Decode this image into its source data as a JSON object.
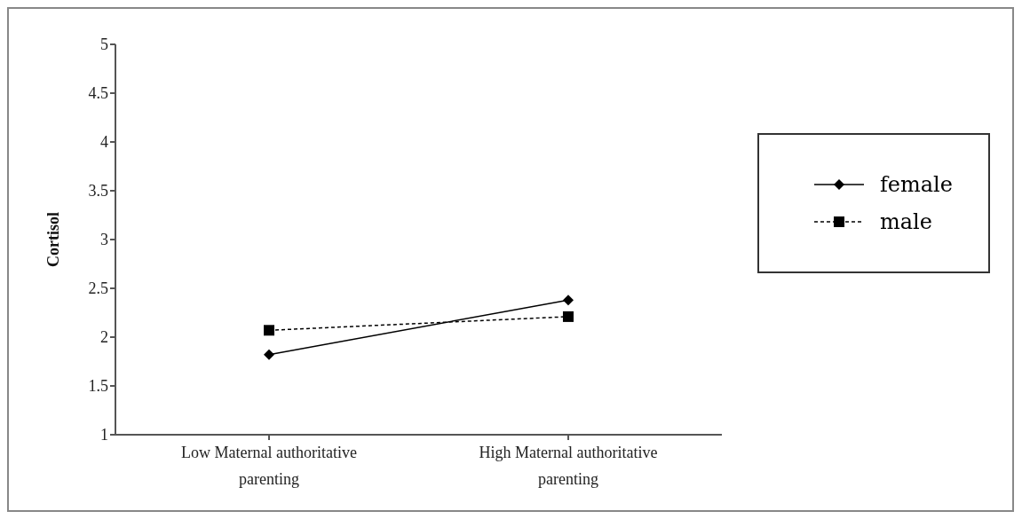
{
  "chart_data": {
    "type": "line",
    "categories": [
      "Low Maternal authoritative parenting",
      "High Maternal authoritative parenting"
    ],
    "series": [
      {
        "name": "female",
        "color": "#000000",
        "values": [
          1.82,
          2.38
        ],
        "marker": "diamond",
        "line_style": "solid"
      },
      {
        "name": "male",
        "color": "#000000",
        "values": [
          2.07,
          2.21
        ],
        "marker": "square",
        "line_style": "dashed"
      }
    ],
    "ylabel": "Cortisol",
    "ylim": [
      1,
      5
    ],
    "yticks": [
      1,
      1.5,
      2,
      2.5,
      3,
      3.5,
      4,
      4.5,
      5
    ],
    "grid": false,
    "legend": "right"
  }
}
